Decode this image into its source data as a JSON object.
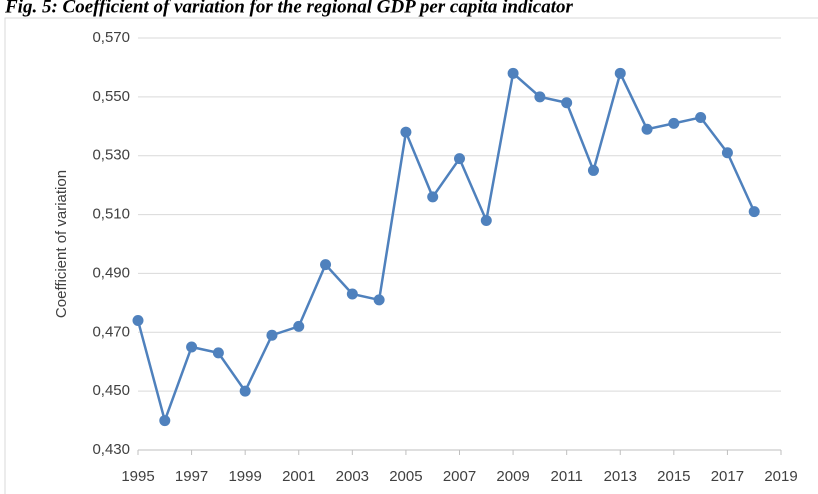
{
  "chart_data": {
    "type": "line",
    "title": "Fig. 5: Coefficient of variation for the regional GDP per capita indicator",
    "ylabel": "Coefficient of variation",
    "x": [
      1995,
      1996,
      1997,
      1998,
      1999,
      2000,
      2001,
      2002,
      2003,
      2004,
      2005,
      2006,
      2007,
      2008,
      2009,
      2010,
      2011,
      2012,
      2013,
      2014,
      2015,
      2016,
      2017,
      2018
    ],
    "series": [
      {
        "name": "Coefficient of variation",
        "color": "#4f81bd",
        "values": [
          0.474,
          0.44,
          0.465,
          0.463,
          0.45,
          0.469,
          0.472,
          0.493,
          0.483,
          0.481,
          0.538,
          0.516,
          0.529,
          0.508,
          0.558,
          0.55,
          0.548,
          0.525,
          0.558,
          0.539,
          0.541,
          0.543,
          0.531,
          0.511
        ]
      }
    ],
    "xlim": [
      1995,
      2019
    ],
    "xticks": [
      1995,
      1997,
      1999,
      2001,
      2003,
      2005,
      2007,
      2009,
      2011,
      2013,
      2015,
      2017,
      2019
    ],
    "ylim": [
      0.43,
      0.57
    ],
    "yticks": [
      {
        "value": 0.43,
        "label": "0,430"
      },
      {
        "value": 0.45,
        "label": "0,450"
      },
      {
        "value": 0.47,
        "label": "0,470"
      },
      {
        "value": 0.49,
        "label": "0,490"
      },
      {
        "value": 0.51,
        "label": "0,510"
      },
      {
        "value": 0.53,
        "label": "0,530"
      },
      {
        "value": 0.55,
        "label": "0,550"
      },
      {
        "value": 0.57,
        "label": "0,570"
      }
    ],
    "grid": true
  }
}
